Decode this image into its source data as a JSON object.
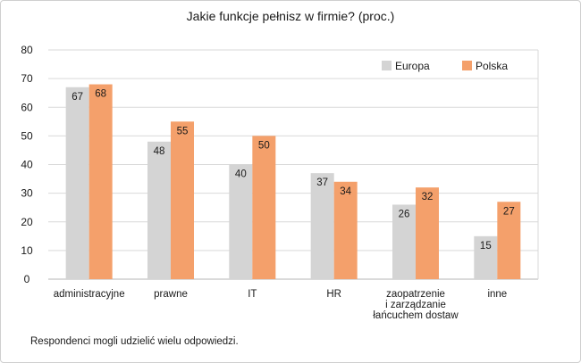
{
  "chart_data": {
    "type": "bar",
    "title": "Jakie funkcje pełnisz w firmie? (proc.)",
    "categories": [
      [
        "administracyjne"
      ],
      [
        "prawne"
      ],
      [
        "IT"
      ],
      [
        "HR"
      ],
      [
        "zaopatrzenie",
        "i zarządzanie",
        "łańcuchem dostaw"
      ],
      [
        "inne"
      ]
    ],
    "series": [
      {
        "name": "Europa",
        "values": [
          67,
          48,
          40,
          37,
          26,
          15
        ],
        "color": "#d4d4d4"
      },
      {
        "name": "Polska",
        "values": [
          68,
          55,
          50,
          34,
          32,
          27
        ],
        "color": "#f4a06b"
      }
    ],
    "ylim": [
      0,
      80
    ],
    "yticks": [
      0,
      10,
      20,
      30,
      40,
      50,
      60,
      70,
      80
    ],
    "grid": true,
    "legend": "top-right"
  },
  "note": "Respondenci mogli udzielić wielu odpowiedzi."
}
